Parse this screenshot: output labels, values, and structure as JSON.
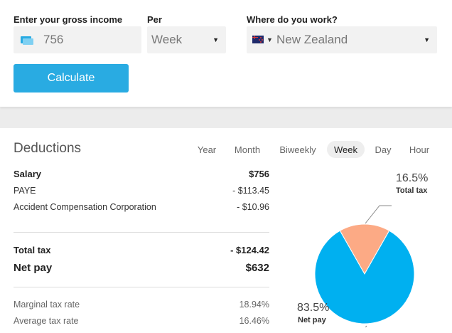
{
  "form": {
    "income_label": "Enter your gross income",
    "income_value": "756",
    "per_label": "Per",
    "per_value": "Week",
    "where_label": "Where do you work?",
    "where_value": "New Zealand",
    "calculate_label": "Calculate"
  },
  "deductions": {
    "title": "Deductions",
    "periods": [
      "Year",
      "Month",
      "Biweekly",
      "Week",
      "Day",
      "Hour"
    ],
    "active_period": "Week",
    "salary": {
      "label": "Salary",
      "value": "$756"
    },
    "items": [
      {
        "label": "PAYE",
        "value": "- $113.45"
      },
      {
        "label": "Accident Compensation Corporation",
        "value": "- $10.96"
      }
    ],
    "total_tax": {
      "label": "Total tax",
      "value": "- $124.42"
    },
    "net_pay": {
      "label": "Net pay",
      "value": "$632"
    },
    "marginal": {
      "label": "Marginal tax rate",
      "value": "18.94%"
    },
    "average": {
      "label": "Average tax rate",
      "value": "16.46%"
    }
  },
  "chart_data": {
    "type": "pie",
    "slices": [
      {
        "label": "Total tax",
        "percent_label": "16.5%",
        "value": 16.5,
        "color": "#fcaa85"
      },
      {
        "label": "Net pay",
        "percent_label": "83.5%",
        "value": 83.5,
        "color": "#00b0f0"
      }
    ]
  },
  "colors": {
    "accent": "#29abe2"
  }
}
